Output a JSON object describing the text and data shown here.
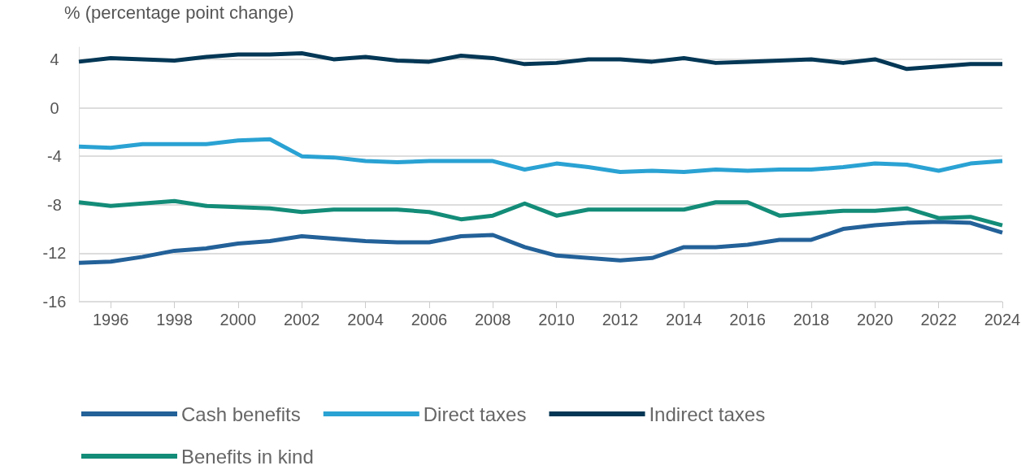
{
  "chart_data": {
    "type": "line",
    "ylabel": "% (percentage point change)",
    "x": [
      1995,
      1996,
      1997,
      1998,
      1999,
      2000,
      2001,
      2002,
      2003,
      2004,
      2005,
      2006,
      2007,
      2008,
      2009,
      2010,
      2011,
      2012,
      2013,
      2014,
      2015,
      2016,
      2017,
      2018,
      2019,
      2020,
      2021,
      2022,
      2023,
      2024
    ],
    "series": [
      {
        "name": "Cash benefits",
        "color": "#236199",
        "values": [
          -12.8,
          -12.7,
          -12.3,
          -11.8,
          -11.6,
          -11.2,
          -11.0,
          -10.6,
          -10.8,
          -11.0,
          -11.1,
          -11.1,
          -10.6,
          -10.5,
          -11.5,
          -12.2,
          -12.4,
          -12.6,
          -12.4,
          -11.5,
          -11.5,
          -11.3,
          -10.9,
          -10.9,
          -10.0,
          -9.7,
          -9.5,
          -9.4,
          -9.5,
          -10.3
        ]
      },
      {
        "name": "Direct taxes",
        "color": "#2aa2d3",
        "values": [
          -3.2,
          -3.3,
          -3.0,
          -3.0,
          -3.0,
          -2.7,
          -2.6,
          -4.0,
          -4.1,
          -4.4,
          -4.5,
          -4.4,
          -4.4,
          -4.4,
          -5.1,
          -4.6,
          -4.9,
          -5.3,
          -5.2,
          -5.3,
          -5.1,
          -5.2,
          -5.1,
          -5.1,
          -4.9,
          -4.6,
          -4.7,
          -5.2,
          -4.6,
          -4.4
        ]
      },
      {
        "name": "Indirect taxes",
        "color": "#033755",
        "values": [
          3.8,
          4.1,
          4.0,
          3.9,
          4.2,
          4.4,
          4.4,
          4.5,
          4.0,
          4.2,
          3.9,
          3.8,
          4.3,
          4.1,
          3.6,
          3.7,
          4.0,
          4.0,
          3.8,
          4.1,
          3.7,
          3.8,
          3.9,
          4.0,
          3.7,
          4.0,
          3.2,
          3.4,
          3.6,
          3.6
        ]
      },
      {
        "name": "Benefits in kind",
        "color": "#138c78",
        "values": [
          -7.8,
          -8.1,
          -7.9,
          -7.7,
          -8.1,
          -8.2,
          -8.3,
          -8.6,
          -8.4,
          -8.4,
          -8.4,
          -8.6,
          -9.2,
          -8.9,
          -7.9,
          -8.9,
          -8.4,
          -8.4,
          -8.4,
          -8.4,
          -7.8,
          -7.8,
          -8.9,
          -8.7,
          -8.5,
          -8.5,
          -8.3,
          -9.1,
          -9.0,
          -9.7
        ]
      }
    ],
    "xlim": [
      1995,
      2024
    ],
    "xticks": [
      1996,
      1998,
      2000,
      2002,
      2004,
      2006,
      2008,
      2010,
      2012,
      2014,
      2016,
      2018,
      2020,
      2022,
      2024
    ],
    "ylim": [
      -16,
      5
    ],
    "yticks": [
      -16,
      -12,
      -8,
      -4,
      0,
      4
    ],
    "grid": "y",
    "legend": "bottom",
    "marker": "none",
    "line_style": "solid"
  }
}
